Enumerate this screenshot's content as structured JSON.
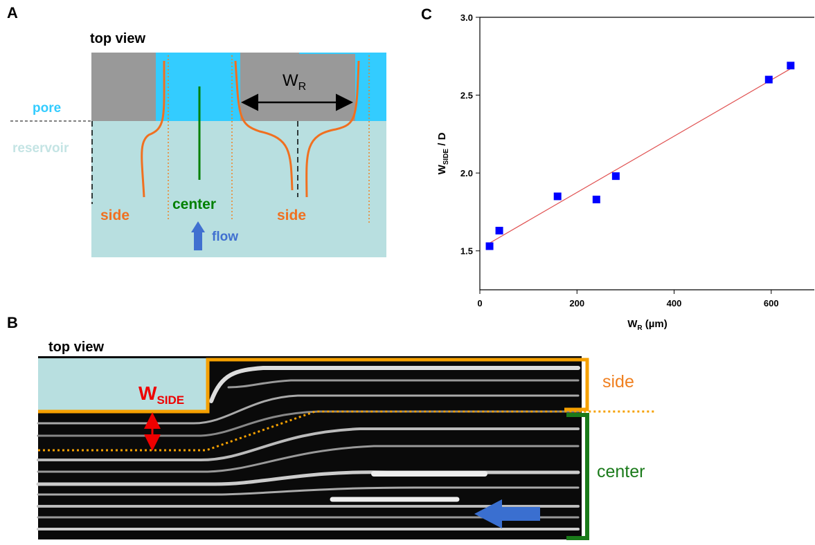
{
  "panel_a": {
    "label": "A",
    "view": "top view",
    "pore": "pore",
    "reservoir": "reservoir",
    "width_symbol": "W",
    "width_sub": "R",
    "center": "center",
    "side_left": "side",
    "side_right": "side",
    "flow": "flow"
  },
  "panel_b": {
    "label": "B",
    "view": "top view",
    "width_symbol": "W",
    "width_sub": "SIDE",
    "side": "side",
    "center": "center"
  },
  "chart_data": {
    "type": "scatter",
    "panel_label": "C",
    "x": [
      20,
      40,
      160,
      240,
      280,
      595,
      640
    ],
    "values": [
      1.53,
      1.63,
      1.85,
      1.83,
      1.98,
      2.6,
      2.69
    ],
    "color": "#0000ff",
    "fit_line": {
      "x": [
        20,
        640
      ],
      "y": [
        1.55,
        2.67
      ],
      "color": "#e05050"
    },
    "xlabel": {
      "main": "W",
      "sub": "R",
      "rest": " (µm)"
    },
    "ylabel": {
      "main": "W",
      "sub": "SIDE",
      "rest": " / D"
    },
    "xlim": [
      0,
      690
    ],
    "ylim": [
      1.25,
      3.0
    ],
    "xticks": [
      0,
      200,
      400,
      600
    ],
    "yticks": [
      1.5,
      2.5,
      {
        "value": 2,
        "label": "2.0"
      },
      {
        "value": 3,
        "label": "3.0"
      }
    ]
  }
}
